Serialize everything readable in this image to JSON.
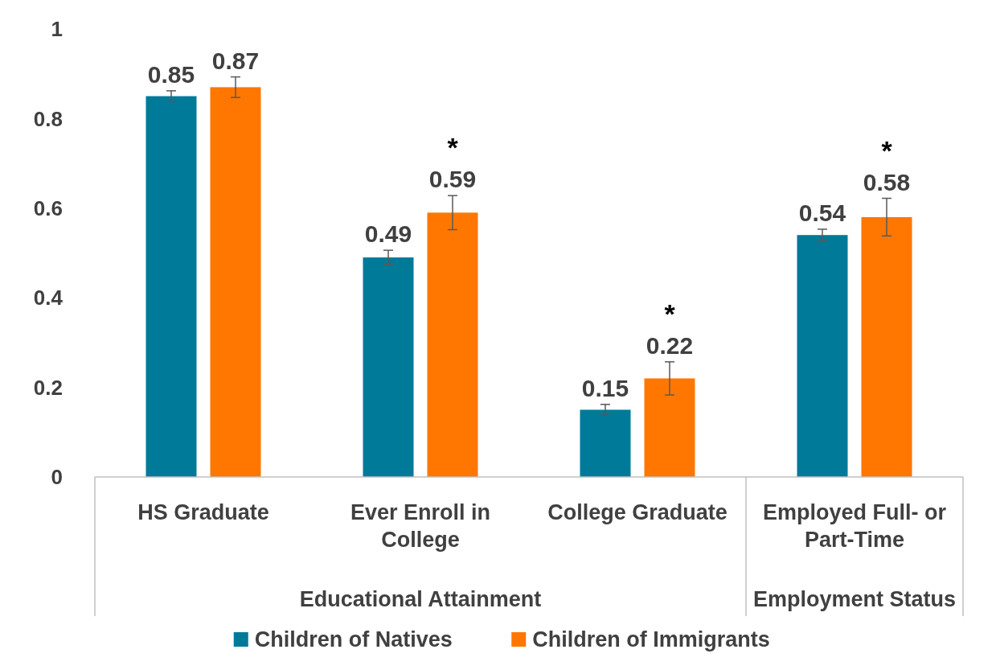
{
  "chart_data": {
    "type": "bar",
    "categories": [
      "HS Graduate",
      "Ever Enroll in College",
      "College Graduate",
      "Employed Full- or Part-Time"
    ],
    "series": [
      {
        "name": "Children of Natives",
        "color": "#007a99",
        "values": [
          0.85,
          0.49,
          0.15,
          0.54
        ],
        "errors": [
          0.012,
          0.016,
          0.012,
          0.013
        ]
      },
      {
        "name": "Children of Immigrants",
        "color": "#ff7700",
        "values": [
          0.87,
          0.59,
          0.22,
          0.58
        ],
        "errors": [
          0.023,
          0.038,
          0.037,
          0.042
        ]
      }
    ],
    "ylim": [
      0,
      1
    ],
    "yticks": [
      0,
      0.2,
      0.4,
      0.6,
      0.8,
      1
    ],
    "grid": false,
    "legend": "bottom",
    "data_labels": true,
    "annotations": [
      "Educational Attainment",
      "Employment Status",
      "*",
      "*",
      "*"
    ]
  }
}
